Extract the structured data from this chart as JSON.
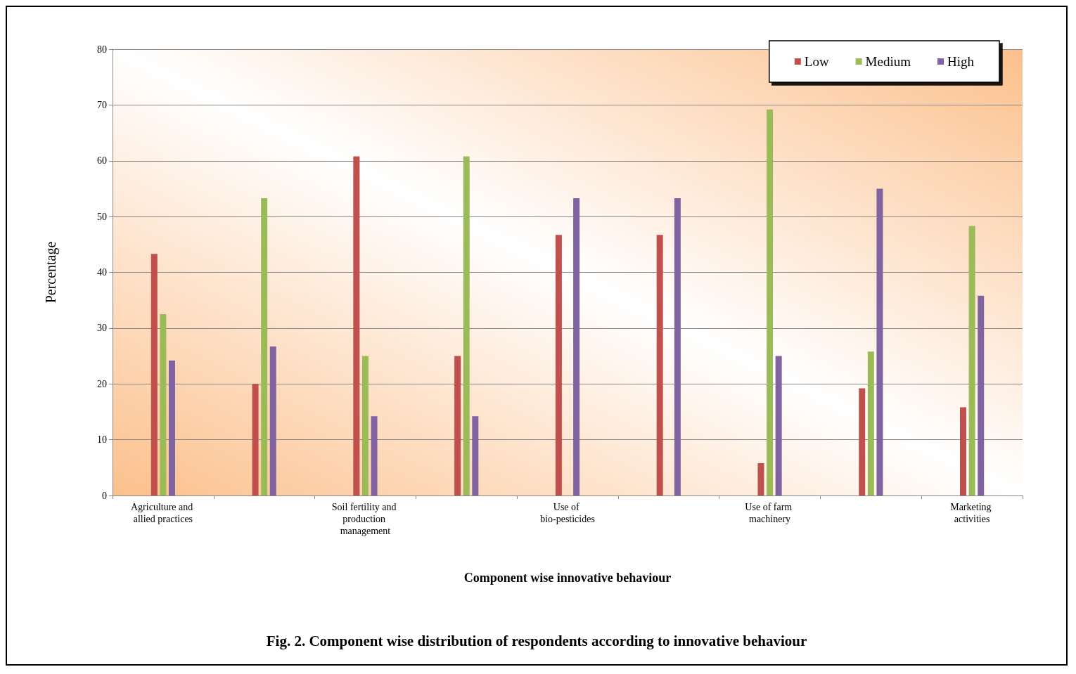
{
  "chart_data": {
    "type": "bar",
    "xlabel": "Component wise innovative behaviour",
    "ylabel": "Percentage",
    "annotations": [
      "Fig. 2. Component wise distribution of respondents according to innovative behaviour"
    ],
    "categories": [
      "Agriculture and allied practices",
      null,
      "Soil fertility and production management",
      null,
      "Use of bio-pesticides",
      null,
      "Use of farm machinery",
      null,
      "Marketing activities"
    ],
    "series": [
      {
        "name": "Low",
        "color": "#c0504d",
        "values": [
          43.3,
          20,
          60.8,
          25,
          46.7,
          46.7,
          5.8,
          19.2,
          15.8
        ]
      },
      {
        "name": "Medium",
        "color": "#9bbb59",
        "values": [
          32.5,
          53.3,
          25,
          60.8,
          null,
          null,
          69.2,
          25.8,
          48.3
        ]
      },
      {
        "name": "High",
        "color": "#8064a2",
        "values": [
          24.2,
          26.7,
          14.2,
          14.2,
          53.3,
          53.3,
          25,
          55,
          35.8
        ]
      }
    ],
    "ylim": [
      0,
      80
    ],
    "yticks": [
      0,
      10,
      20,
      30,
      40,
      50,
      60,
      70,
      80
    ],
    "grid": "y",
    "legend": "top right"
  }
}
